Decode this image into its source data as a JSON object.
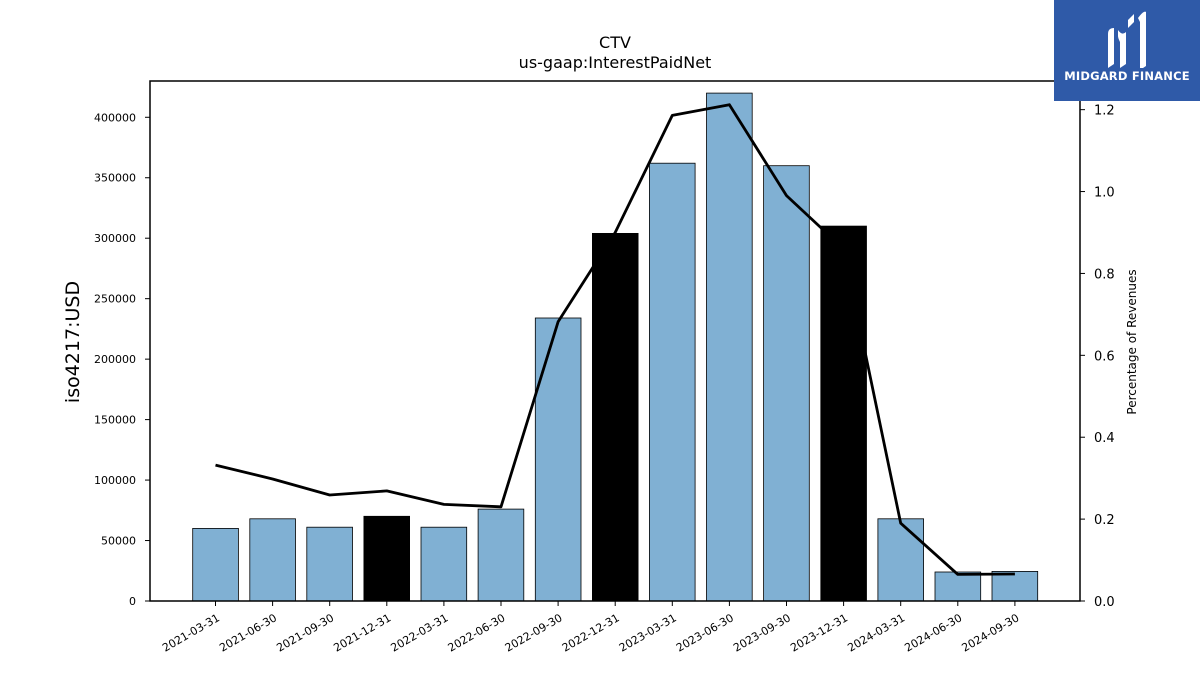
{
  "chart_data": {
    "type": "bar",
    "title": "CTV",
    "subtitle": "us-gaap:InterestPaidNet",
    "ylabel": "iso4217:USD",
    "y2label": "Percentage of Revenues",
    "categories": [
      "2021-03-31",
      "2021-06-30",
      "2021-09-30",
      "2021-12-31",
      "2022-03-31",
      "2022-06-30",
      "2022-09-30",
      "2022-12-31",
      "2023-03-31",
      "2023-06-30",
      "2023-09-30",
      "2023-12-31",
      "2024-03-31",
      "2024-06-30",
      "2024-09-30"
    ],
    "values": [
      60000,
      68000,
      61000,
      70000,
      61000,
      76000,
      234000,
      304000,
      362000,
      420000,
      360000,
      310000,
      68000,
      24000,
      24500
    ],
    "bar_colors": [
      "#80b0d3",
      "#80b0d3",
      "#80b0d3",
      "#000000",
      "#80b0d3",
      "#80b0d3",
      "#80b0d3",
      "#000000",
      "#80b0d3",
      "#80b0d3",
      "#80b0d3",
      "#000000",
      "#80b0d3",
      "#80b0d3",
      "#80b0d3"
    ],
    "line_values": [
      0.332,
      0.298,
      0.259,
      0.269,
      0.236,
      0.23,
      0.682,
      0.9,
      1.186,
      1.212,
      0.99,
      0.86,
      0.19,
      0.065,
      0.066
    ],
    "ylim": [
      0,
      430000
    ],
    "yticks": [
      "0",
      "50000",
      "100000",
      "150000",
      "200000",
      "250000",
      "300000",
      "350000",
      "400000"
    ],
    "y2lim": [
      0,
      1.27
    ],
    "y2ticks": [
      "0.0",
      "0.2",
      "0.4",
      "0.6",
      "0.8",
      "1.0",
      "1.2"
    ],
    "line_color": "#000000"
  },
  "logo": {
    "text": "MIDGARD FINANCE",
    "background": "#2f5aa8"
  }
}
